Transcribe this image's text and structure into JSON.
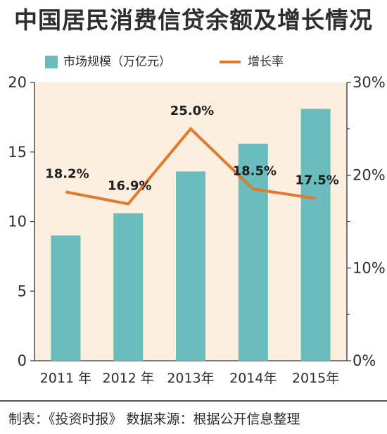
{
  "chart_data": {
    "type": "bar+line",
    "title": "中国居民消费信贷余额及增长情况",
    "categories": [
      "2011 年",
      "2012 年",
      "2013年",
      "2014年",
      "2015年"
    ],
    "series": [
      {
        "name": "市场规模（万亿元）",
        "type": "bar",
        "axis": "left",
        "values": [
          9.0,
          10.6,
          13.6,
          15.6,
          18.1
        ]
      },
      {
        "name": "增长率",
        "type": "line",
        "axis": "right",
        "values": [
          18.2,
          16.9,
          25.0,
          18.5,
          17.5
        ],
        "labels": [
          "18.2%",
          "16.9%",
          "25.0%",
          "18.5%",
          "17.5%"
        ]
      }
    ],
    "y_left": {
      "range": [
        0,
        20
      ],
      "ticks": [
        "0",
        "5",
        "10",
        "15",
        "20"
      ]
    },
    "y_right": {
      "range": [
        0,
        30
      ],
      "ticks": [
        "0%",
        "10%",
        "20%",
        "30%"
      ]
    },
    "legend_position": "top-left",
    "grid": false,
    "colors": {
      "bar": "#6bbcbc",
      "line": "#e07a2e",
      "plot_bg": "#fcefdf",
      "text": "#2e2e2e"
    }
  },
  "footer": {
    "text": "制表：《投资时报》  数据来源：根据公开信息整理"
  }
}
